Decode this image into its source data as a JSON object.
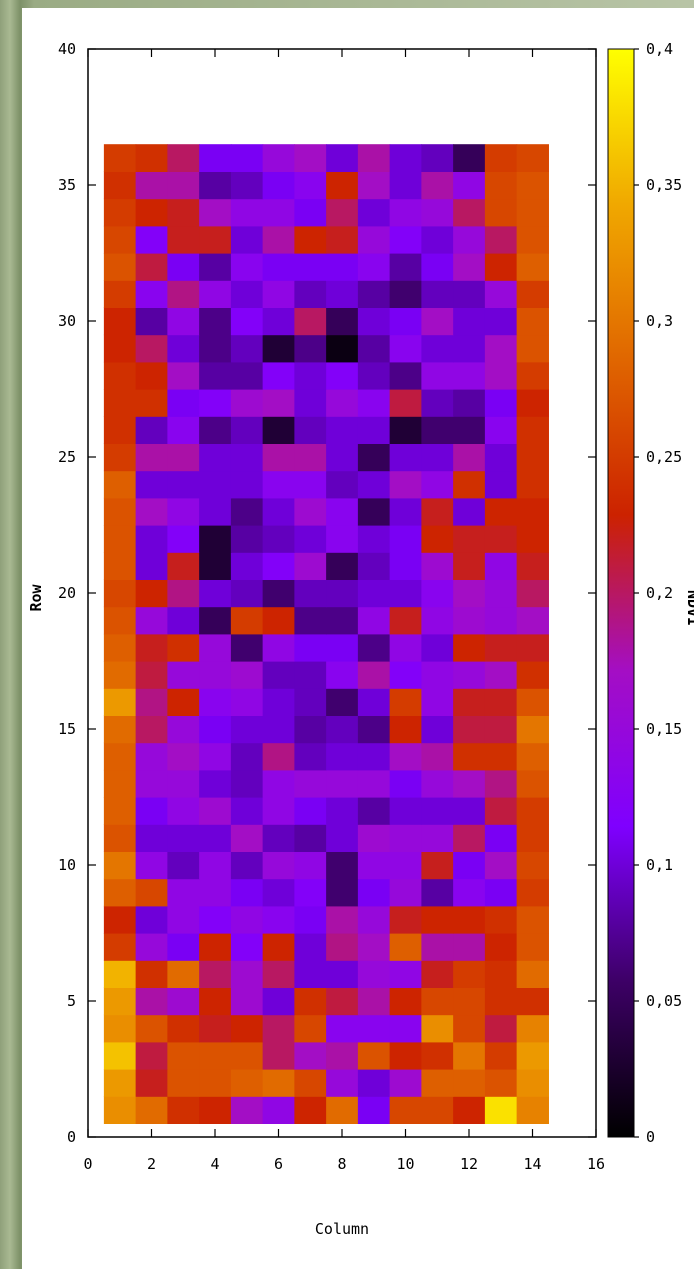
{
  "chart_data": {
    "type": "heatmap",
    "title": "",
    "xlabel": "Column",
    "ylabel": "Row",
    "colorbar_label": "NDVI",
    "xlim": [
      0,
      16
    ],
    "ylim": [
      0,
      40
    ],
    "clim": [
      0,
      0.4
    ],
    "x_ticks": [
      "0",
      "2",
      "4",
      "6",
      "8",
      "10",
      "12",
      "14",
      "16"
    ],
    "y_ticks": [
      "0",
      "5",
      "10",
      "15",
      "20",
      "25",
      "30",
      "35",
      "40"
    ],
    "colorbar_ticks": [
      "0",
      "0,05",
      "0,1",
      "0,15",
      "0,2",
      "0,25",
      "0,3",
      "0,35",
      "0,4"
    ],
    "colormap": [
      "#000000",
      "#3d0066",
      "#7f00ff",
      "#a40ec4",
      "#cc2200",
      "#e06600",
      "#f0a800",
      "#ffff00"
    ],
    "columns": [
      1,
      2,
      3,
      4,
      5,
      6,
      7,
      8,
      9,
      10,
      11,
      12,
      13,
      14
    ],
    "rows": [
      1,
      2,
      3,
      4,
      5,
      6,
      7,
      8,
      9,
      10,
      11,
      12,
      13,
      14,
      15,
      16,
      17,
      18,
      19,
      20,
      21,
      22,
      23,
      24,
      25,
      26,
      27,
      28,
      29,
      30,
      31,
      32,
      33,
      34,
      35,
      36
    ],
    "values": [
      [
        0.32,
        0.29,
        0.24,
        0.23,
        0.17,
        0.14,
        0.23,
        0.29,
        0.11,
        0.26,
        0.26,
        0.23,
        0.38,
        0.31
      ],
      [
        0.33,
        0.22,
        0.27,
        0.27,
        0.28,
        0.29,
        0.26,
        0.15,
        0.1,
        0.16,
        0.28,
        0.28,
        0.27,
        0.32
      ],
      [
        0.36,
        0.21,
        0.27,
        0.27,
        0.27,
        0.2,
        0.17,
        0.18,
        0.27,
        0.23,
        0.24,
        0.3,
        0.25,
        0.33
      ],
      [
        0.32,
        0.27,
        0.24,
        0.22,
        0.23,
        0.2,
        0.26,
        0.13,
        0.13,
        0.13,
        0.32,
        0.26,
        0.21,
        0.31
      ],
      [
        0.33,
        0.18,
        0.16,
        0.23,
        0.16,
        0.1,
        0.24,
        0.21,
        0.18,
        0.23,
        0.26,
        0.26,
        0.24,
        0.24
      ],
      [
        0.35,
        0.24,
        0.29,
        0.2,
        0.16,
        0.2,
        0.1,
        0.1,
        0.15,
        0.14,
        0.22,
        0.25,
        0.24,
        0.29
      ],
      [
        0.25,
        0.15,
        0.11,
        0.23,
        0.12,
        0.23,
        0.1,
        0.19,
        0.17,
        0.28,
        0.18,
        0.18,
        0.23,
        0.27
      ],
      [
        0.23,
        0.1,
        0.14,
        0.12,
        0.14,
        0.13,
        0.11,
        0.18,
        0.15,
        0.22,
        0.23,
        0.23,
        0.24,
        0.27
      ],
      [
        0.28,
        0.26,
        0.14,
        0.14,
        0.11,
        0.1,
        0.12,
        0.06,
        0.11,
        0.15,
        0.08,
        0.13,
        0.11,
        0.25
      ],
      [
        0.3,
        0.14,
        0.09,
        0.14,
        0.09,
        0.15,
        0.14,
        0.06,
        0.14,
        0.14,
        0.22,
        0.11,
        0.17,
        0.26
      ],
      [
        0.27,
        0.1,
        0.1,
        0.1,
        0.17,
        0.09,
        0.08,
        0.1,
        0.16,
        0.15,
        0.15,
        0.2,
        0.11,
        0.25
      ],
      [
        0.28,
        0.11,
        0.14,
        0.16,
        0.1,
        0.14,
        0.11,
        0.1,
        0.08,
        0.1,
        0.1,
        0.1,
        0.21,
        0.25
      ],
      [
        0.28,
        0.15,
        0.15,
        0.1,
        0.09,
        0.14,
        0.15,
        0.15,
        0.15,
        0.11,
        0.15,
        0.17,
        0.19,
        0.27
      ],
      [
        0.28,
        0.15,
        0.17,
        0.14,
        0.09,
        0.19,
        0.09,
        0.1,
        0.1,
        0.17,
        0.18,
        0.24,
        0.24,
        0.28
      ],
      [
        0.29,
        0.2,
        0.15,
        0.11,
        0.1,
        0.1,
        0.08,
        0.09,
        0.07,
        0.23,
        0.1,
        0.21,
        0.21,
        0.3
      ],
      [
        0.33,
        0.19,
        0.23,
        0.13,
        0.14,
        0.1,
        0.09,
        0.06,
        0.1,
        0.25,
        0.14,
        0.22,
        0.22,
        0.27
      ],
      [
        0.29,
        0.21,
        0.15,
        0.15,
        0.16,
        0.09,
        0.09,
        0.13,
        0.18,
        0.12,
        0.14,
        0.15,
        0.17,
        0.24
      ],
      [
        0.28,
        0.22,
        0.24,
        0.15,
        0.06,
        0.14,
        0.11,
        0.11,
        0.07,
        0.14,
        0.1,
        0.23,
        0.22,
        0.22
      ],
      [
        0.27,
        0.15,
        0.1,
        0.05,
        0.25,
        0.23,
        0.07,
        0.07,
        0.14,
        0.22,
        0.14,
        0.16,
        0.15,
        0.17
      ],
      [
        0.26,
        0.23,
        0.19,
        0.1,
        0.09,
        0.06,
        0.09,
        0.09,
        0.1,
        0.1,
        0.13,
        0.17,
        0.15,
        0.2
      ],
      [
        0.27,
        0.1,
        0.22,
        0.03,
        0.1,
        0.12,
        0.16,
        0.05,
        0.09,
        0.11,
        0.16,
        0.22,
        0.14,
        0.22
      ],
      [
        0.27,
        0.1,
        0.12,
        0.03,
        0.08,
        0.09,
        0.1,
        0.13,
        0.1,
        0.11,
        0.23,
        0.22,
        0.22,
        0.23
      ],
      [
        0.27,
        0.17,
        0.14,
        0.1,
        0.07,
        0.1,
        0.16,
        0.13,
        0.05,
        0.1,
        0.22,
        0.1,
        0.23,
        0.23
      ],
      [
        0.28,
        0.1,
        0.1,
        0.1,
        0.1,
        0.13,
        0.13,
        0.09,
        0.1,
        0.17,
        0.14,
        0.24,
        0.1,
        0.24
      ],
      [
        0.25,
        0.18,
        0.18,
        0.1,
        0.1,
        0.18,
        0.18,
        0.1,
        0.05,
        0.1,
        0.1,
        0.18,
        0.1,
        0.24
      ],
      [
        0.24,
        0.09,
        0.13,
        0.07,
        0.09,
        0.03,
        0.09,
        0.1,
        0.1,
        0.03,
        0.06,
        0.06,
        0.13,
        0.24
      ],
      [
        0.24,
        0.24,
        0.11,
        0.12,
        0.16,
        0.17,
        0.1,
        0.15,
        0.13,
        0.21,
        0.09,
        0.08,
        0.11,
        0.23
      ],
      [
        0.24,
        0.23,
        0.17,
        0.08,
        0.08,
        0.12,
        0.1,
        0.12,
        0.09,
        0.07,
        0.14,
        0.14,
        0.17,
        0.25
      ],
      [
        0.23,
        0.2,
        0.1,
        0.07,
        0.09,
        0.03,
        0.07,
        0.01,
        0.08,
        0.13,
        0.1,
        0.1,
        0.17,
        0.27
      ],
      [
        0.23,
        0.08,
        0.14,
        0.07,
        0.12,
        0.1,
        0.2,
        0.05,
        0.1,
        0.11,
        0.17,
        0.1,
        0.1,
        0.27
      ],
      [
        0.25,
        0.13,
        0.19,
        0.14,
        0.1,
        0.14,
        0.09,
        0.1,
        0.08,
        0.06,
        0.09,
        0.09,
        0.15,
        0.25
      ],
      [
        0.27,
        0.21,
        0.11,
        0.08,
        0.13,
        0.11,
        0.11,
        0.11,
        0.13,
        0.08,
        0.11,
        0.17,
        0.23,
        0.28
      ],
      [
        0.26,
        0.12,
        0.22,
        0.22,
        0.1,
        0.18,
        0.23,
        0.22,
        0.15,
        0.12,
        0.1,
        0.15,
        0.2,
        0.27
      ],
      [
        0.25,
        0.23,
        0.22,
        0.17,
        0.14,
        0.14,
        0.11,
        0.2,
        0.1,
        0.14,
        0.15,
        0.2,
        0.26,
        0.27
      ],
      [
        0.24,
        0.18,
        0.18,
        0.08,
        0.09,
        0.11,
        0.13,
        0.23,
        0.17,
        0.1,
        0.18,
        0.14,
        0.26,
        0.27
      ],
      [
        0.25,
        0.24,
        0.2,
        0.11,
        0.11,
        0.15,
        0.17,
        0.1,
        0.18,
        0.1,
        0.09,
        0.05,
        0.25,
        0.26
      ]
    ]
  }
}
